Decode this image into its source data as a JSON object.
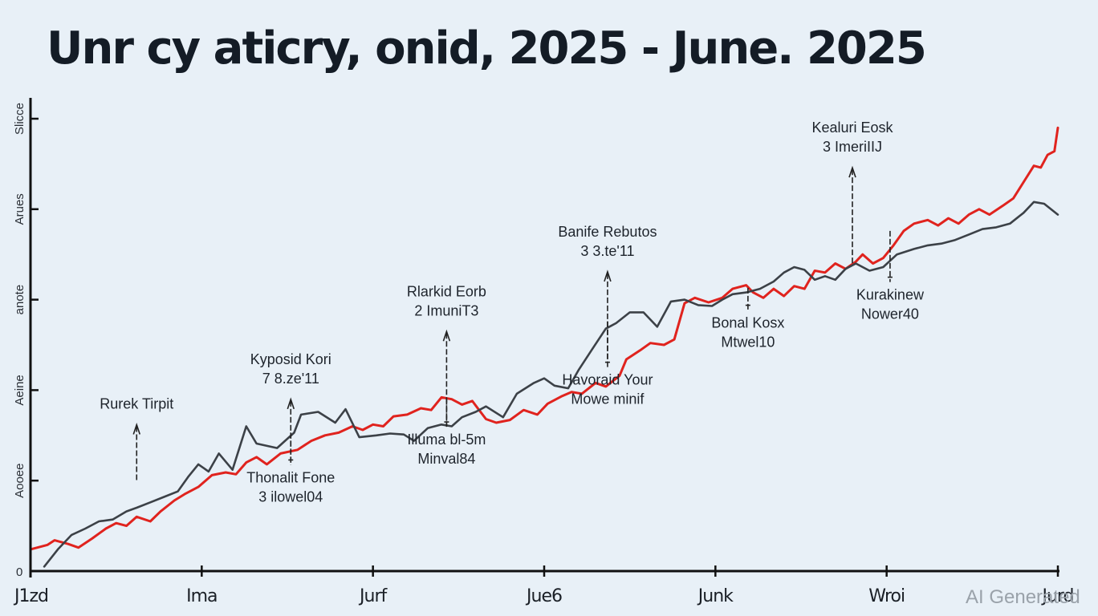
{
  "chart_data": {
    "type": "line",
    "title": "Unr cy aticry, onid, 2025 - June. 2025",
    "xlabel": "",
    "ylabel": "",
    "xlim": [
      0,
      6
    ],
    "ylim": [
      0,
      5
    ],
    "grid": false,
    "legend": "none",
    "x_ticks": [
      {
        "value": 0,
        "label": "J1zd"
      },
      {
        "value": 1,
        "label": "Ima"
      },
      {
        "value": 2,
        "label": "Jurf"
      },
      {
        "value": 3,
        "label": "Jue6"
      },
      {
        "value": 4,
        "label": "Junk"
      },
      {
        "value": 5,
        "label": "Wroi"
      },
      {
        "value": 6,
        "label": "Jurd"
      }
    ],
    "y_ticks": [
      {
        "value": 0,
        "label": "0"
      },
      {
        "value": 1,
        "label": "Aooee"
      },
      {
        "value": 2,
        "label": "Aeine"
      },
      {
        "value": 3,
        "label": "anote"
      },
      {
        "value": 4,
        "label": "Arues"
      },
      {
        "value": 5,
        "label": "Slicce"
      }
    ],
    "series": [
      {
        "name": "red-series",
        "color": "#e0231e",
        "points": [
          [
            0.0,
            0.24
          ],
          [
            0.1,
            0.29
          ],
          [
            0.14,
            0.34
          ],
          [
            0.22,
            0.3
          ],
          [
            0.28,
            0.26
          ],
          [
            0.36,
            0.36
          ],
          [
            0.44,
            0.47
          ],
          [
            0.5,
            0.53
          ],
          [
            0.56,
            0.5
          ],
          [
            0.62,
            0.6
          ],
          [
            0.7,
            0.55
          ],
          [
            0.76,
            0.66
          ],
          [
            0.84,
            0.78
          ],
          [
            0.9,
            0.85
          ],
          [
            0.98,
            0.93
          ],
          [
            1.06,
            1.06
          ],
          [
            1.14,
            1.09
          ],
          [
            1.2,
            1.07
          ],
          [
            1.26,
            1.2
          ],
          [
            1.32,
            1.26
          ],
          [
            1.38,
            1.18
          ],
          [
            1.46,
            1.3
          ],
          [
            1.56,
            1.34
          ],
          [
            1.64,
            1.44
          ],
          [
            1.72,
            1.5
          ],
          [
            1.8,
            1.53
          ],
          [
            1.88,
            1.6
          ],
          [
            1.94,
            1.56
          ],
          [
            2.0,
            1.62
          ],
          [
            2.06,
            1.6
          ],
          [
            2.12,
            1.71
          ],
          [
            2.2,
            1.73
          ],
          [
            2.28,
            1.8
          ],
          [
            2.34,
            1.78
          ],
          [
            2.4,
            1.92
          ],
          [
            2.46,
            1.9
          ],
          [
            2.52,
            1.84
          ],
          [
            2.58,
            1.88
          ],
          [
            2.62,
            1.78
          ],
          [
            2.66,
            1.68
          ],
          [
            2.72,
            1.64
          ],
          [
            2.8,
            1.67
          ],
          [
            2.88,
            1.78
          ],
          [
            2.96,
            1.73
          ],
          [
            3.02,
            1.85
          ],
          [
            3.1,
            1.93
          ],
          [
            3.16,
            1.98
          ],
          [
            3.22,
            1.96
          ],
          [
            3.3,
            2.08
          ],
          [
            3.36,
            2.04
          ],
          [
            3.44,
            2.16
          ],
          [
            3.48,
            2.34
          ],
          [
            3.56,
            2.44
          ],
          [
            3.62,
            2.52
          ],
          [
            3.7,
            2.5
          ],
          [
            3.76,
            2.56
          ],
          [
            3.82,
            2.96
          ],
          [
            3.88,
            3.02
          ],
          [
            3.96,
            2.97
          ],
          [
            4.04,
            3.02
          ],
          [
            4.1,
            3.12
          ],
          [
            4.18,
            3.16
          ],
          [
            4.22,
            3.08
          ],
          [
            4.28,
            3.02
          ],
          [
            4.34,
            3.12
          ],
          [
            4.4,
            3.04
          ],
          [
            4.46,
            3.15
          ],
          [
            4.52,
            3.12
          ],
          [
            4.58,
            3.32
          ],
          [
            4.64,
            3.3
          ],
          [
            4.7,
            3.4
          ],
          [
            4.76,
            3.34
          ],
          [
            4.82,
            3.42
          ],
          [
            4.86,
            3.5
          ],
          [
            4.92,
            3.4
          ],
          [
            4.98,
            3.46
          ],
          [
            5.04,
            3.6
          ],
          [
            5.1,
            3.76
          ],
          [
            5.16,
            3.84
          ],
          [
            5.24,
            3.88
          ],
          [
            5.3,
            3.82
          ],
          [
            5.36,
            3.9
          ],
          [
            5.42,
            3.84
          ],
          [
            5.48,
            3.94
          ],
          [
            5.54,
            4.0
          ],
          [
            5.6,
            3.94
          ],
          [
            5.68,
            4.04
          ],
          [
            5.74,
            4.12
          ],
          [
            5.8,
            4.3
          ],
          [
            5.86,
            4.48
          ],
          [
            5.9,
            4.46
          ],
          [
            5.94,
            4.6
          ],
          [
            5.98,
            4.64
          ],
          [
            6.0,
            4.9
          ]
        ]
      },
      {
        "name": "dark-series",
        "color": "#3c4147",
        "points": [
          [
            0.08,
            0.05
          ],
          [
            0.16,
            0.24
          ],
          [
            0.24,
            0.4
          ],
          [
            0.32,
            0.47
          ],
          [
            0.4,
            0.55
          ],
          [
            0.48,
            0.57
          ],
          [
            0.56,
            0.66
          ],
          [
            0.62,
            0.7
          ],
          [
            0.7,
            0.76
          ],
          [
            0.78,
            0.82
          ],
          [
            0.86,
            0.88
          ],
          [
            0.92,
            1.04
          ],
          [
            0.98,
            1.18
          ],
          [
            1.04,
            1.1
          ],
          [
            1.1,
            1.3
          ],
          [
            1.18,
            1.12
          ],
          [
            1.26,
            1.6
          ],
          [
            1.32,
            1.41
          ],
          [
            1.44,
            1.36
          ],
          [
            1.54,
            1.53
          ],
          [
            1.58,
            1.73
          ],
          [
            1.68,
            1.76
          ],
          [
            1.78,
            1.64
          ],
          [
            1.84,
            1.79
          ],
          [
            1.92,
            1.48
          ],
          [
            2.02,
            1.5
          ],
          [
            2.1,
            1.52
          ],
          [
            2.18,
            1.51
          ],
          [
            2.24,
            1.44
          ],
          [
            2.32,
            1.58
          ],
          [
            2.4,
            1.62
          ],
          [
            2.46,
            1.6
          ],
          [
            2.52,
            1.7
          ],
          [
            2.6,
            1.76
          ],
          [
            2.66,
            1.82
          ],
          [
            2.76,
            1.7
          ],
          [
            2.84,
            1.96
          ],
          [
            2.94,
            2.08
          ],
          [
            3.0,
            2.13
          ],
          [
            3.06,
            2.05
          ],
          [
            3.14,
            2.02
          ],
          [
            3.2,
            2.22
          ],
          [
            3.28,
            2.45
          ],
          [
            3.36,
            2.68
          ],
          [
            3.42,
            2.74
          ],
          [
            3.5,
            2.86
          ],
          [
            3.58,
            2.86
          ],
          [
            3.66,
            2.7
          ],
          [
            3.74,
            2.98
          ],
          [
            3.82,
            3.0
          ],
          [
            3.9,
            2.94
          ],
          [
            3.98,
            2.93
          ],
          [
            4.04,
            3.0
          ],
          [
            4.1,
            3.06
          ],
          [
            4.18,
            3.08
          ],
          [
            4.26,
            3.12
          ],
          [
            4.34,
            3.2
          ],
          [
            4.4,
            3.3
          ],
          [
            4.46,
            3.36
          ],
          [
            4.52,
            3.33
          ],
          [
            4.58,
            3.22
          ],
          [
            4.64,
            3.26
          ],
          [
            4.7,
            3.22
          ],
          [
            4.76,
            3.34
          ],
          [
            4.82,
            3.4
          ],
          [
            4.9,
            3.32
          ],
          [
            4.98,
            3.36
          ],
          [
            5.06,
            3.5
          ],
          [
            5.16,
            3.56
          ],
          [
            5.24,
            3.6
          ],
          [
            5.32,
            3.62
          ],
          [
            5.4,
            3.66
          ],
          [
            5.48,
            3.72
          ],
          [
            5.56,
            3.78
          ],
          [
            5.64,
            3.8
          ],
          [
            5.72,
            3.84
          ],
          [
            5.8,
            3.96
          ],
          [
            5.86,
            4.08
          ],
          [
            5.92,
            4.06
          ],
          [
            6.0,
            3.94
          ]
        ]
      }
    ],
    "annotations": [
      {
        "lines": [
          "Rurek Tirpit"
        ],
        "x": 0.62,
        "y_point": 0.98,
        "y_text": 1.76,
        "direction": "up"
      },
      {
        "lines": [
          "Kyposid Kori",
          "7 8.ze'11"
        ],
        "x": 1.52,
        "y_point": 1.17,
        "y_text": 2.04,
        "direction": "up"
      },
      {
        "lines": [
          "Thonalit Fone",
          "3 ilowel04"
        ],
        "x": 1.52,
        "y_point": 1.53,
        "y_text": 0.98,
        "direction": "down"
      },
      {
        "lines": [
          "Rlarkid Eorb",
          "2 ImuniT3"
        ],
        "x": 2.43,
        "y_point": 1.61,
        "y_text": 2.79,
        "direction": "up"
      },
      {
        "lines": [
          "Illuma bl-5m",
          "Minval84"
        ],
        "x": 2.43,
        "y_point": 1.9,
        "y_text": 1.4,
        "direction": "down"
      },
      {
        "lines": [
          "Banife Rebutos",
          "3 3.te'11"
        ],
        "x": 3.37,
        "y_point": 2.33,
        "y_text": 3.45,
        "direction": "up"
      },
      {
        "lines": [
          "Havoraid Your",
          "Mowe minif"
        ],
        "x": 3.37,
        "y_point": 2.76,
        "y_text": 2.06,
        "direction": "down"
      },
      {
        "lines": [
          "Bonal Kosx",
          "Mtwel10"
        ],
        "x": 4.19,
        "y_point": 3.13,
        "y_text": 2.69,
        "direction": "down"
      },
      {
        "lines": [
          "Kealuri Eosk",
          "3 ImeriIIJ"
        ],
        "x": 4.8,
        "y_point": 3.4,
        "y_text": 4.6,
        "direction": "up"
      },
      {
        "lines": [
          "Kurakinew",
          "Nower40"
        ],
        "x": 5.02,
        "y_point": 3.76,
        "y_text": 3.0,
        "direction": "down"
      }
    ]
  },
  "watermark": "AI Generated"
}
